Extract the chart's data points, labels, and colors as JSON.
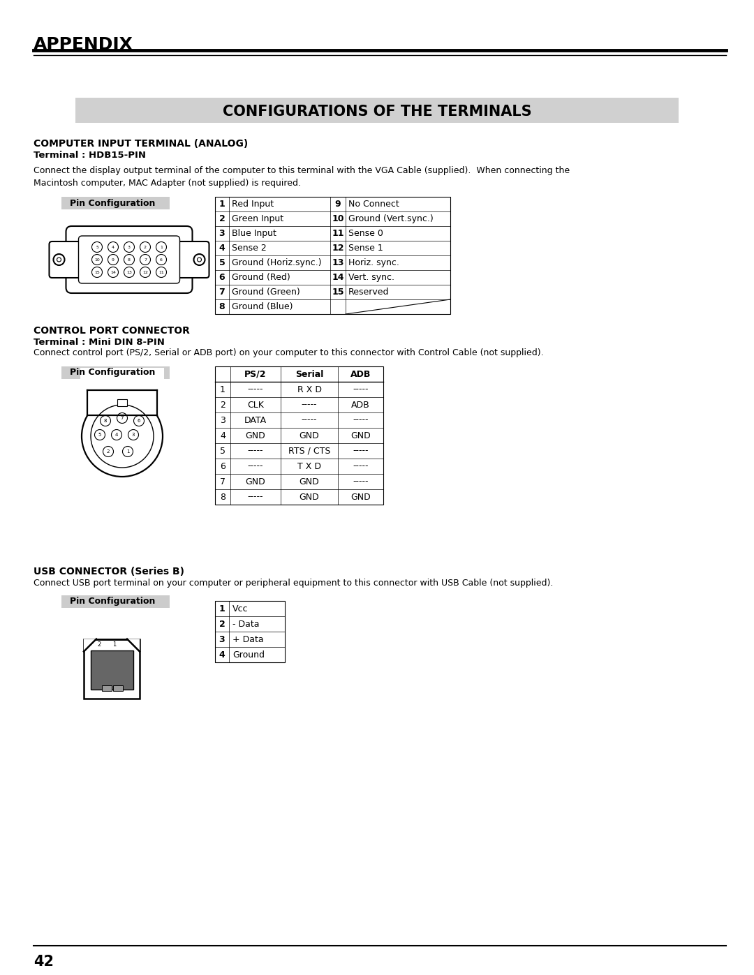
{
  "page_title": "APPENDIX",
  "section_title": "CONFIGURATIONS OF THE TERMINALS",
  "bg_color": "#ffffff",
  "section_bg": "#d0d0d0",
  "page_number": "42",
  "computer_input": {
    "title": "COMPUTER INPUT TERMINAL (ANALOG)",
    "subtitle": "Terminal : HDB15-PIN",
    "description": "Connect the display output terminal of the computer to this terminal with the VGA Cable (supplied).  When connecting the\nMacintosh computer, MAC Adapter (not supplied) is required.",
    "pin_label": "Pin Configuration",
    "table": {
      "left": [
        [
          "1",
          "Red Input"
        ],
        [
          "2",
          "Green Input"
        ],
        [
          "3",
          "Blue Input"
        ],
        [
          "4",
          "Sense 2"
        ],
        [
          "5",
          "Ground (Horiz.sync.)"
        ],
        [
          "6",
          "Ground (Red)"
        ],
        [
          "7",
          "Ground (Green)"
        ],
        [
          "8",
          "Ground (Blue)"
        ]
      ],
      "right": [
        [
          "9",
          "No Connect"
        ],
        [
          "10",
          "Ground (Vert.sync.)"
        ],
        [
          "11",
          "Sense 0"
        ],
        [
          "12",
          "Sense 1"
        ],
        [
          "13",
          "Horiz. sync."
        ],
        [
          "14",
          "Vert. sync."
        ],
        [
          "15",
          "Reserved"
        ],
        [
          "",
          ""
        ]
      ]
    }
  },
  "control_port": {
    "title": "CONTROL PORT CONNECTOR",
    "subtitle": "Terminal : Mini DIN 8-PIN",
    "description": "Connect control port (PS/2, Serial or ADB port) on your computer to this connector with Control Cable (not supplied).",
    "pin_label": "Pin Configuration",
    "table": {
      "header": [
        "",
        "PS/2",
        "Serial",
        "ADB"
      ],
      "rows": [
        [
          "1",
          "-----",
          "R X D",
          "-----"
        ],
        [
          "2",
          "CLK",
          "-----",
          "ADB"
        ],
        [
          "3",
          "DATA",
          "-----",
          "-----"
        ],
        [
          "4",
          "GND",
          "GND",
          "GND"
        ],
        [
          "5",
          "-----",
          "RTS / CTS",
          "-----"
        ],
        [
          "6",
          "-----",
          "T X D",
          "-----"
        ],
        [
          "7",
          "GND",
          "GND",
          "-----"
        ],
        [
          "8",
          "-----",
          "GND",
          "GND"
        ]
      ]
    }
  },
  "usb_connector": {
    "title": "USB CONNECTOR (Series B)",
    "description": "Connect USB port terminal on your computer or peripheral equipment to this connector with USB Cable (not supplied).",
    "pin_label": "Pin Configuration",
    "table": {
      "rows": [
        [
          "1",
          "Vcc"
        ],
        [
          "2",
          "- Data"
        ],
        [
          "3",
          "+ Data"
        ],
        [
          "4",
          "Ground"
        ]
      ]
    }
  }
}
